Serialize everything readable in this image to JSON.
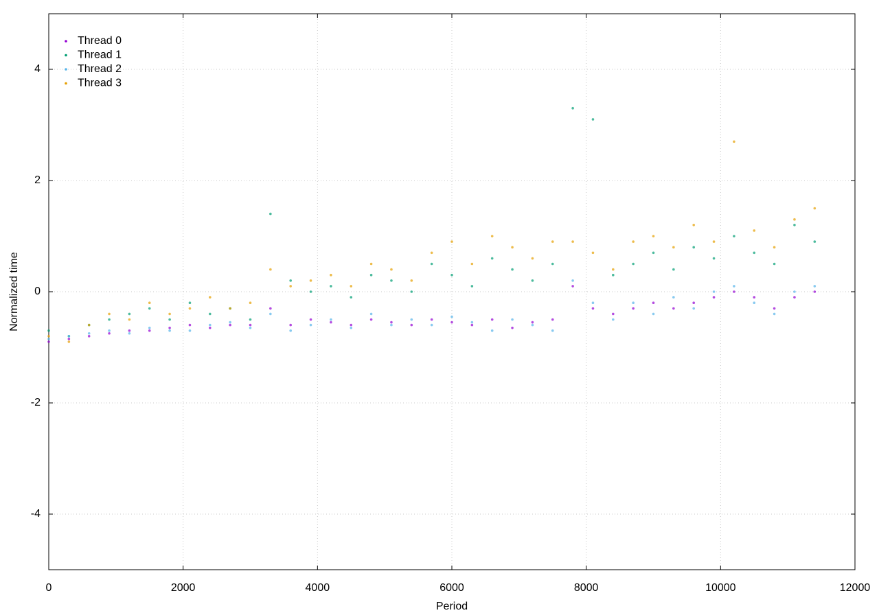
{
  "chart_data": {
    "type": "scatter",
    "x_label": "Period",
    "y_label": "Normalized time",
    "xlim": [
      0,
      12000
    ],
    "ylim": [
      -5,
      5
    ],
    "xticks": [
      0,
      2000,
      4000,
      6000,
      8000,
      10000,
      12000
    ],
    "yticks": [
      -4,
      -2,
      0,
      2,
      4
    ],
    "grid": true,
    "legend": "upper-left",
    "x": [
      0,
      300,
      600,
      900,
      1200,
      1500,
      1800,
      2100,
      2400,
      2700,
      3000,
      3300,
      3600,
      3900,
      4200,
      4500,
      4800,
      5100,
      5400,
      5700,
      6000,
      6300,
      6600,
      6900,
      7200,
      7500,
      7800,
      8100,
      8400,
      8700,
      9000,
      9300,
      9600,
      9900,
      10200,
      10500,
      10800,
      11100,
      11400
    ],
    "series": [
      {
        "name": "Thread 0",
        "color": "#9400d3",
        "values": [
          -0.9,
          -0.85,
          -0.8,
          -0.75,
          -0.7,
          -0.7,
          -0.65,
          -0.6,
          -0.65,
          -0.6,
          -0.6,
          -0.3,
          -0.6,
          -0.5,
          -0.55,
          -0.6,
          -0.5,
          -0.55,
          -0.6,
          -0.5,
          -0.55,
          -0.6,
          -0.5,
          -0.65,
          -0.55,
          -0.5,
          0.1,
          -0.3,
          -0.4,
          -0.3,
          -0.2,
          -0.3,
          -0.2,
          -0.1,
          0,
          -0.1,
          -0.3,
          -0.1,
          0
        ]
      },
      {
        "name": "Thread 1",
        "color": "#009e73",
        "values": [
          -0.7,
          -0.8,
          -0.6,
          -0.5,
          -0.4,
          -0.3,
          -0.5,
          -0.2,
          -0.4,
          -0.3,
          -0.5,
          1.4,
          0.2,
          0,
          0.1,
          -0.1,
          0.3,
          0.2,
          0,
          0.5,
          0.3,
          0.1,
          0.6,
          0.4,
          0.2,
          0.5,
          3.3,
          3.1,
          0.3,
          0.5,
          0.7,
          0.4,
          0.8,
          0.6,
          1.0,
          0.7,
          0.5,
          1.2,
          0.9
        ]
      },
      {
        "name": "Thread 2",
        "color": "#56b4e9",
        "values": [
          -0.85,
          -0.8,
          -0.75,
          -0.7,
          -0.75,
          -0.65,
          -0.7,
          -0.7,
          -0.6,
          -0.55,
          -0.65,
          -0.4,
          -0.7,
          -0.6,
          -0.5,
          -0.65,
          -0.4,
          -0.6,
          -0.5,
          -0.6,
          -0.45,
          -0.55,
          -0.7,
          -0.5,
          -0.6,
          -0.7,
          0.2,
          -0.2,
          -0.5,
          -0.2,
          -0.4,
          -0.1,
          -0.3,
          0,
          0.1,
          -0.2,
          -0.4,
          0,
          0.1
        ]
      },
      {
        "name": "Thread 3",
        "color": "#e69f00",
        "values": [
          -0.8,
          -0.9,
          -0.6,
          -0.4,
          -0.5,
          -0.2,
          -0.4,
          -0.3,
          -0.1,
          -0.3,
          -0.2,
          0.4,
          0.1,
          0.2,
          0.3,
          0.1,
          0.5,
          0.4,
          0.2,
          0.7,
          0.9,
          0.5,
          1.0,
          0.8,
          0.6,
          0.9,
          0.9,
          0.7,
          0.4,
          0.9,
          1.0,
          0.8,
          1.2,
          0.9,
          2.7,
          1.1,
          0.8,
          1.3,
          1.5
        ]
      }
    ]
  }
}
